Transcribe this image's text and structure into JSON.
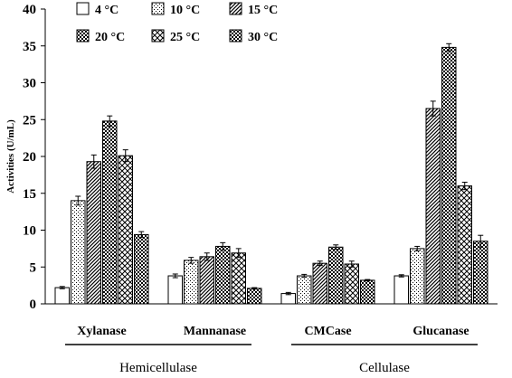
{
  "chart_data": {
    "type": "bar",
    "title": "",
    "xlabel": "",
    "ylabel": "Activities (U/mL)",
    "ylim": [
      0,
      40
    ],
    "yticks": [
      "0",
      "5",
      "10",
      "15",
      "20",
      "25",
      "30",
      "35",
      "40"
    ],
    "grid": false,
    "legend_position": "top",
    "categories": [
      "Xylanase",
      "Mannanase",
      "CMCase",
      "Glucanase"
    ],
    "groups": [
      {
        "label": "Hemicellulase",
        "categories": [
          "Xylanase",
          "Mannanase"
        ]
      },
      {
        "label": "Cellulase",
        "categories": [
          "CMCase",
          "Glucanase"
        ]
      }
    ],
    "series": [
      {
        "name": "4 °C",
        "pattern": "white",
        "values": [
          2.2,
          3.8,
          1.4,
          3.8
        ],
        "errors": [
          0.15,
          0.25,
          0.15,
          0.15
        ]
      },
      {
        "name": "10 °C",
        "pattern": "fine-dots",
        "values": [
          14.0,
          5.9,
          3.8,
          7.5
        ],
        "errors": [
          0.6,
          0.4,
          0.2,
          0.3
        ]
      },
      {
        "name": "15 °C",
        "pattern": "dense-diagonal",
        "values": [
          19.3,
          6.4,
          5.5,
          26.5
        ],
        "errors": [
          0.9,
          0.5,
          0.3,
          1.0
        ]
      },
      {
        "name": "20 °C",
        "pattern": "coarse-dots",
        "values": [
          24.8,
          7.8,
          7.7,
          34.8
        ],
        "errors": [
          0.7,
          0.5,
          0.3,
          0.5
        ]
      },
      {
        "name": "25 °C",
        "pattern": "crosshatch",
        "values": [
          20.1,
          6.9,
          5.4,
          16.0
        ],
        "errors": [
          0.8,
          0.6,
          0.4,
          0.5
        ]
      },
      {
        "name": "30 °C",
        "pattern": "checker",
        "values": [
          9.4,
          2.1,
          3.2,
          8.5
        ],
        "errors": [
          0.4,
          0.1,
          0.1,
          0.8
        ]
      }
    ]
  }
}
